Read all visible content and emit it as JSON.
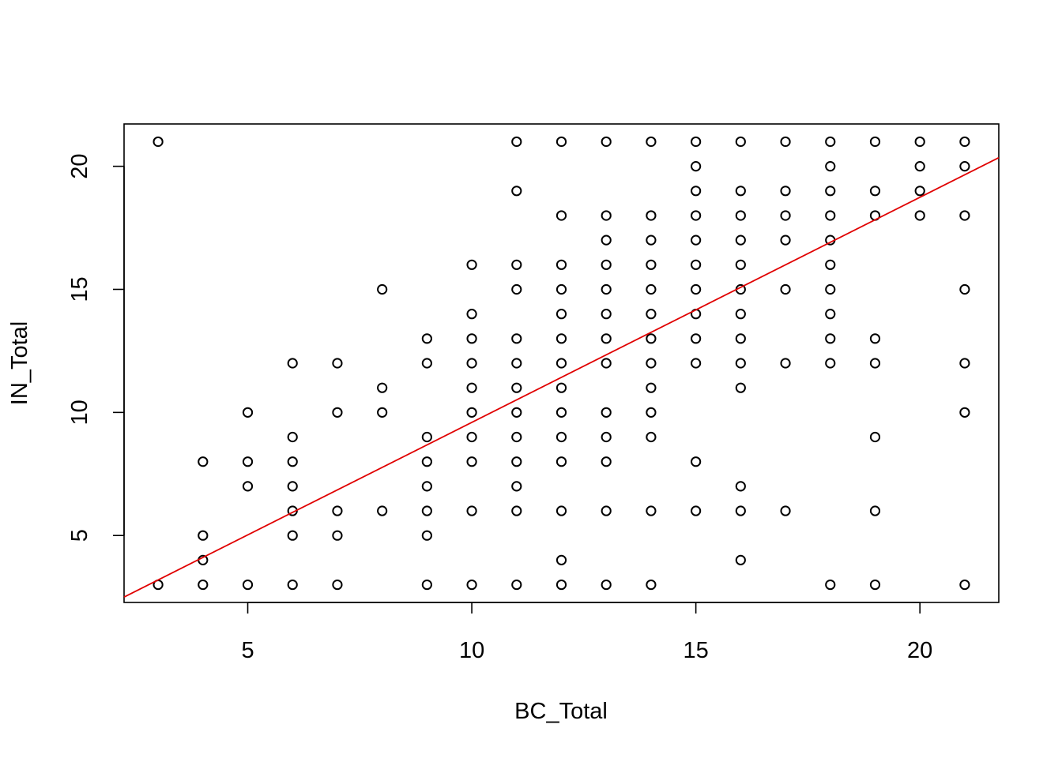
{
  "chart_data": {
    "type": "scatter",
    "title": "",
    "xlabel": "BC_Total",
    "ylabel": "IN_Total",
    "xlim": [
      2.24,
      21.76
    ],
    "ylim": [
      2.28,
      21.72
    ],
    "xticks": [
      5,
      10,
      15,
      20
    ],
    "yticks": [
      5,
      10,
      15,
      20
    ],
    "point_color": "#000000",
    "line_color": "#e00000",
    "regression_line": {
      "x": [
        2.24,
        21.76
      ],
      "y": [
        2.5,
        20.35
      ]
    },
    "points": [
      [
        3,
        21
      ],
      [
        3,
        3
      ],
      [
        4,
        8
      ],
      [
        4,
        5
      ],
      [
        4,
        4
      ],
      [
        4,
        3
      ],
      [
        5,
        10
      ],
      [
        5,
        8
      ],
      [
        5,
        7
      ],
      [
        5,
        3
      ],
      [
        6,
        12
      ],
      [
        6,
        9
      ],
      [
        6,
        8
      ],
      [
        6,
        7
      ],
      [
        6,
        6
      ],
      [
        6,
        5
      ],
      [
        6,
        3
      ],
      [
        7,
        12
      ],
      [
        7,
        10
      ],
      [
        7,
        6
      ],
      [
        7,
        5
      ],
      [
        7,
        3
      ],
      [
        8,
        15
      ],
      [
        8,
        11
      ],
      [
        8,
        10
      ],
      [
        8,
        6
      ],
      [
        9,
        13
      ],
      [
        9,
        12
      ],
      [
        9,
        9
      ],
      [
        9,
        8
      ],
      [
        9,
        7
      ],
      [
        9,
        6
      ],
      [
        9,
        5
      ],
      [
        9,
        3
      ],
      [
        10,
        16
      ],
      [
        10,
        14
      ],
      [
        10,
        13
      ],
      [
        10,
        12
      ],
      [
        10,
        11
      ],
      [
        10,
        10
      ],
      [
        10,
        9
      ],
      [
        10,
        8
      ],
      [
        10,
        6
      ],
      [
        10,
        3
      ],
      [
        11,
        21
      ],
      [
        11,
        19
      ],
      [
        11,
        16
      ],
      [
        11,
        15
      ],
      [
        11,
        13
      ],
      [
        11,
        12
      ],
      [
        11,
        11
      ],
      [
        11,
        10
      ],
      [
        11,
        9
      ],
      [
        11,
        8
      ],
      [
        11,
        7
      ],
      [
        11,
        6
      ],
      [
        11,
        3
      ],
      [
        12,
        21
      ],
      [
        12,
        18
      ],
      [
        12,
        16
      ],
      [
        12,
        15
      ],
      [
        12,
        14
      ],
      [
        12,
        13
      ],
      [
        12,
        12
      ],
      [
        12,
        11
      ],
      [
        12,
        10
      ],
      [
        12,
        9
      ],
      [
        12,
        8
      ],
      [
        12,
        6
      ],
      [
        12,
        4
      ],
      [
        12,
        3
      ],
      [
        13,
        21
      ],
      [
        13,
        18
      ],
      [
        13,
        17
      ],
      [
        13,
        16
      ],
      [
        13,
        15
      ],
      [
        13,
        14
      ],
      [
        13,
        13
      ],
      [
        13,
        12
      ],
      [
        13,
        10
      ],
      [
        13,
        9
      ],
      [
        13,
        8
      ],
      [
        13,
        6
      ],
      [
        13,
        3
      ],
      [
        14,
        21
      ],
      [
        14,
        18
      ],
      [
        14,
        17
      ],
      [
        14,
        16
      ],
      [
        14,
        15
      ],
      [
        14,
        14
      ],
      [
        14,
        13
      ],
      [
        14,
        12
      ],
      [
        14,
        11
      ],
      [
        14,
        10
      ],
      [
        14,
        9
      ],
      [
        14,
        6
      ],
      [
        14,
        3
      ],
      [
        15,
        21
      ],
      [
        15,
        20
      ],
      [
        15,
        19
      ],
      [
        15,
        18
      ],
      [
        15,
        17
      ],
      [
        15,
        16
      ],
      [
        15,
        15
      ],
      [
        15,
        14
      ],
      [
        15,
        13
      ],
      [
        15,
        12
      ],
      [
        15,
        8
      ],
      [
        15,
        6
      ],
      [
        16,
        21
      ],
      [
        16,
        19
      ],
      [
        16,
        18
      ],
      [
        16,
        17
      ],
      [
        16,
        16
      ],
      [
        16,
        15
      ],
      [
        16,
        14
      ],
      [
        16,
        13
      ],
      [
        16,
        12
      ],
      [
        16,
        11
      ],
      [
        16,
        7
      ],
      [
        16,
        6
      ],
      [
        16,
        4
      ],
      [
        17,
        21
      ],
      [
        17,
        19
      ],
      [
        17,
        18
      ],
      [
        17,
        17
      ],
      [
        17,
        15
      ],
      [
        17,
        12
      ],
      [
        17,
        6
      ],
      [
        18,
        21
      ],
      [
        18,
        20
      ],
      [
        18,
        19
      ],
      [
        18,
        18
      ],
      [
        18,
        17
      ],
      [
        18,
        16
      ],
      [
        18,
        15
      ],
      [
        18,
        14
      ],
      [
        18,
        13
      ],
      [
        18,
        12
      ],
      [
        18,
        3
      ],
      [
        19,
        21
      ],
      [
        19,
        19
      ],
      [
        19,
        18
      ],
      [
        19,
        13
      ],
      [
        19,
        12
      ],
      [
        19,
        9
      ],
      [
        19,
        6
      ],
      [
        19,
        3
      ],
      [
        20,
        21
      ],
      [
        20,
        20
      ],
      [
        20,
        19
      ],
      [
        20,
        18
      ],
      [
        21,
        21
      ],
      [
        21,
        20
      ],
      [
        21,
        18
      ],
      [
        21,
        15
      ],
      [
        21,
        12
      ],
      [
        21,
        10
      ],
      [
        21,
        3
      ]
    ]
  }
}
